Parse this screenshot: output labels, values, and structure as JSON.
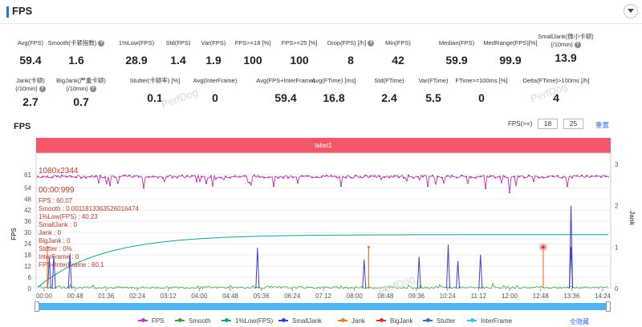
{
  "header": {
    "title": "FPS"
  },
  "metrics_row1": [
    {
      "label": "Avg(FPS)",
      "value": "59.4",
      "help": false
    },
    {
      "label": "Smooth(卡顿指数)",
      "value": "1.6",
      "help": true
    },
    {
      "label": "1%Low(FPS)",
      "value": "28.9",
      "help": false
    },
    {
      "label": "Std(FPS)",
      "value": "1.4",
      "help": false
    },
    {
      "label": "Var(FPS)",
      "value": "1.9",
      "help": false
    },
    {
      "label": "FPS>=18 [%]",
      "value": "100",
      "help": false
    },
    {
      "label": "FPS>=25 [%]",
      "value": "100",
      "help": false
    },
    {
      "label": "Drop(FPS) [/h]",
      "value": "8",
      "help": true
    },
    {
      "label": "Min(FPS)",
      "value": "42",
      "help": false
    },
    {
      "label": "Median(FPS)",
      "value": "59.9",
      "help": false
    },
    {
      "label": "MedRange(FPS)[%]",
      "value": "99.9",
      "help": false
    },
    {
      "label": "SmallJank(微小卡顿)",
      "label2": "(/10min)",
      "value": "13.9",
      "help": true
    }
  ],
  "metrics_row2": [
    {
      "label": "Jank(卡顿)",
      "label2": "(/10min)",
      "value": "2.7",
      "help": true
    },
    {
      "label": "BigJank(严重卡顿)",
      "label2": "(/10min)",
      "value": "0.7",
      "help": true
    },
    {
      "label": "Stutter(卡顿率) [%]",
      "value": "0.1",
      "help": false
    },
    {
      "label": "Avg(InterFrame)",
      "value": "0",
      "help": false
    },
    {
      "label": "Avg(FPS+InterFrame)",
      "value": "59.4",
      "help": false
    },
    {
      "label": "Avg(FTime) [ms]",
      "value": "16.8",
      "help": false
    },
    {
      "label": "Std(FTime)",
      "value": "2.4",
      "help": false
    },
    {
      "label": "Var(FTime)",
      "value": "5.5",
      "help": false
    },
    {
      "label": "FTime>=100ms [%]",
      "value": "0",
      "help": false
    },
    {
      "label": "Delta(FTime)>100ms [/h]",
      "value": "4",
      "help": false
    }
  ],
  "chart_controls": {
    "title": "FPS",
    "fps_label": "FPS(>=)",
    "fps_low": "18",
    "fps_high": "25",
    "reset_label": "重置"
  },
  "chart_data": {
    "type": "line",
    "label_band": "label1",
    "ylabel_left": "FPS",
    "ylabel_right": "Jank",
    "y_ticks_left": [
      0,
      6,
      12,
      18,
      24,
      30,
      36,
      42,
      48,
      54,
      61
    ],
    "y_ticks_right": [
      0,
      1,
      2,
      3
    ],
    "x_ticks": [
      "00:00",
      "00:48",
      "01:36",
      "02:24",
      "03:12",
      "04:00",
      "04:48",
      "05:36",
      "06:24",
      "07:12",
      "08:00",
      "08:48",
      "09:36",
      "10:24",
      "11:12",
      "12:00",
      "12:48",
      "13:36",
      "14:24"
    ],
    "fps_series_description_points": [
      {
        "t": "00:00",
        "fps": 60
      },
      {
        "t": "01:36",
        "fps": 60
      },
      {
        "t": "03:12",
        "fps": 60
      },
      {
        "t": "04:48",
        "fps": 60
      },
      {
        "t": "06:24",
        "fps": 60
      },
      {
        "t": "08:00",
        "fps": 60
      },
      {
        "t": "09:36",
        "fps": 60
      },
      {
        "t": "11:12",
        "fps": 60
      },
      {
        "t": "12:48",
        "fps": 60
      },
      {
        "t": "14:24",
        "fps": 60
      }
    ],
    "low1_level": 28.9,
    "smalljank_times": [
      "00:08",
      "00:15",
      "00:40",
      "05:30",
      "08:15",
      "09:40",
      "10:25",
      "10:40",
      "11:15",
      "13:35"
    ],
    "jank_times": [
      "00:05",
      "08:22",
      "12:52"
    ],
    "series": [
      {
        "name": "FPS",
        "color": "#c13fb6"
      },
      {
        "name": "Smooth",
        "color": "#35a744"
      },
      {
        "name": "1%Low(FPS)",
        "color": "#12a095"
      },
      {
        "name": "SmallJank",
        "color": "#3a3fd8"
      },
      {
        "name": "Jank",
        "color": "#f07c27"
      },
      {
        "name": "BigJank",
        "color": "#d9342b"
      },
      {
        "name": "Stutter",
        "color": "#2f72c8"
      },
      {
        "name": "InterFrame",
        "color": "#38c7d6"
      }
    ]
  },
  "tooltip": {
    "resolution": "1080x2344",
    "time": "00:00:999",
    "lines": [
      {
        "k": "FPS",
        "v": "60.07"
      },
      {
        "k": "Smooth",
        "v": "0.0011813363526016474"
      },
      {
        "k": "1%Low(FPS)",
        "v": "40.23"
      },
      {
        "k": "SmallJank",
        "v": "0"
      },
      {
        "k": "Jank",
        "v": "0"
      },
      {
        "k": "BigJank",
        "v": "0"
      },
      {
        "k": "Stutter",
        "v": "0%"
      },
      {
        "k": "InterFrame",
        "v": "0"
      },
      {
        "k": "FPS+InterFrame",
        "v": "60.1"
      }
    ]
  },
  "legend": {
    "hide_all": "全隐藏"
  },
  "watermark": "PerfDog"
}
